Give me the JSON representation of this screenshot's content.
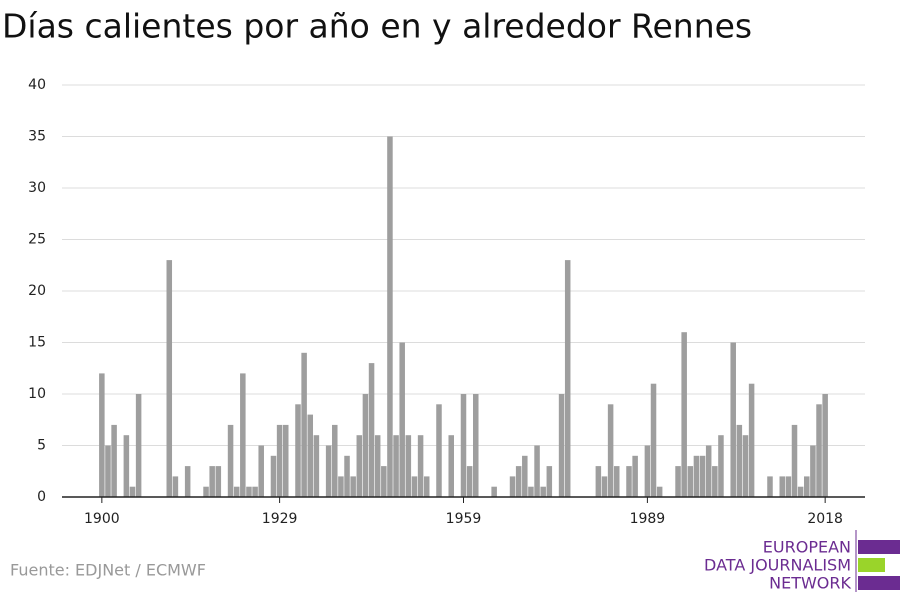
{
  "chart_data": {
    "type": "bar",
    "title": "Días calientes por año en y alrededor Rennes",
    "source": "Fuente: EDJNet / ECMWF",
    "logo": [
      "EUROPEAN",
      "DATA JOURNALISM",
      "NETWORK"
    ],
    "color": "#9e9e9e",
    "x": [
      1900,
      1901,
      1902,
      1903,
      1904,
      1905,
      1906,
      1907,
      1908,
      1909,
      1910,
      1911,
      1912,
      1913,
      1914,
      1915,
      1916,
      1917,
      1918,
      1919,
      1920,
      1921,
      1922,
      1923,
      1924,
      1925,
      1926,
      1927,
      1928,
      1929,
      1930,
      1931,
      1932,
      1933,
      1934,
      1935,
      1936,
      1937,
      1938,
      1939,
      1940,
      1941,
      1942,
      1943,
      1944,
      1945,
      1946,
      1947,
      1948,
      1949,
      1950,
      1951,
      1952,
      1953,
      1954,
      1955,
      1956,
      1957,
      1958,
      1959,
      1960,
      1961,
      1962,
      1963,
      1964,
      1965,
      1966,
      1967,
      1968,
      1969,
      1970,
      1971,
      1972,
      1973,
      1974,
      1975,
      1976,
      1977,
      1978,
      1979,
      1980,
      1981,
      1982,
      1983,
      1984,
      1985,
      1986,
      1987,
      1988,
      1989,
      1990,
      1991,
      1992,
      1993,
      1994,
      1995,
      1996,
      1997,
      1998,
      1999,
      2000,
      2001,
      2002,
      2003,
      2004,
      2005,
      2006,
      2007,
      2008,
      2009,
      2010,
      2011,
      2012,
      2013,
      2014,
      2015,
      2016,
      2017,
      2018
    ],
    "values": [
      12,
      5,
      7,
      0,
      6,
      1,
      10,
      0,
      0,
      0,
      0,
      23,
      2,
      0,
      3,
      0,
      0,
      1,
      3,
      3,
      0,
      7,
      1,
      12,
      1,
      1,
      5,
      0,
      4,
      7,
      7,
      0,
      9,
      14,
      8,
      6,
      0,
      5,
      7,
      2,
      4,
      2,
      6,
      10,
      13,
      6,
      3,
      35,
      6,
      15,
      6,
      2,
      6,
      2,
      0,
      9,
      0,
      6,
      0,
      10,
      3,
      10,
      0,
      0,
      1,
      0,
      0,
      2,
      3,
      4,
      1,
      5,
      1,
      3,
      0,
      10,
      23,
      0,
      0,
      0,
      0,
      3,
      2,
      9,
      3,
      0,
      3,
      4,
      0,
      5,
      11,
      1,
      0,
      0,
      3,
      16,
      3,
      4,
      4,
      5,
      3,
      6,
      0,
      15,
      7,
      6,
      11,
      0,
      0,
      2,
      0,
      2,
      2,
      7,
      1,
      2,
      5,
      9,
      10
    ],
    "xlim": [
      1893.5,
      2024.5
    ],
    "xticks": [
      1900,
      1929,
      1959,
      1989,
      2018
    ],
    "ylim": [
      0,
      40
    ],
    "yticks": [
      0,
      5,
      10,
      15,
      20,
      25,
      30,
      35,
      40
    ],
    "grid": true
  }
}
